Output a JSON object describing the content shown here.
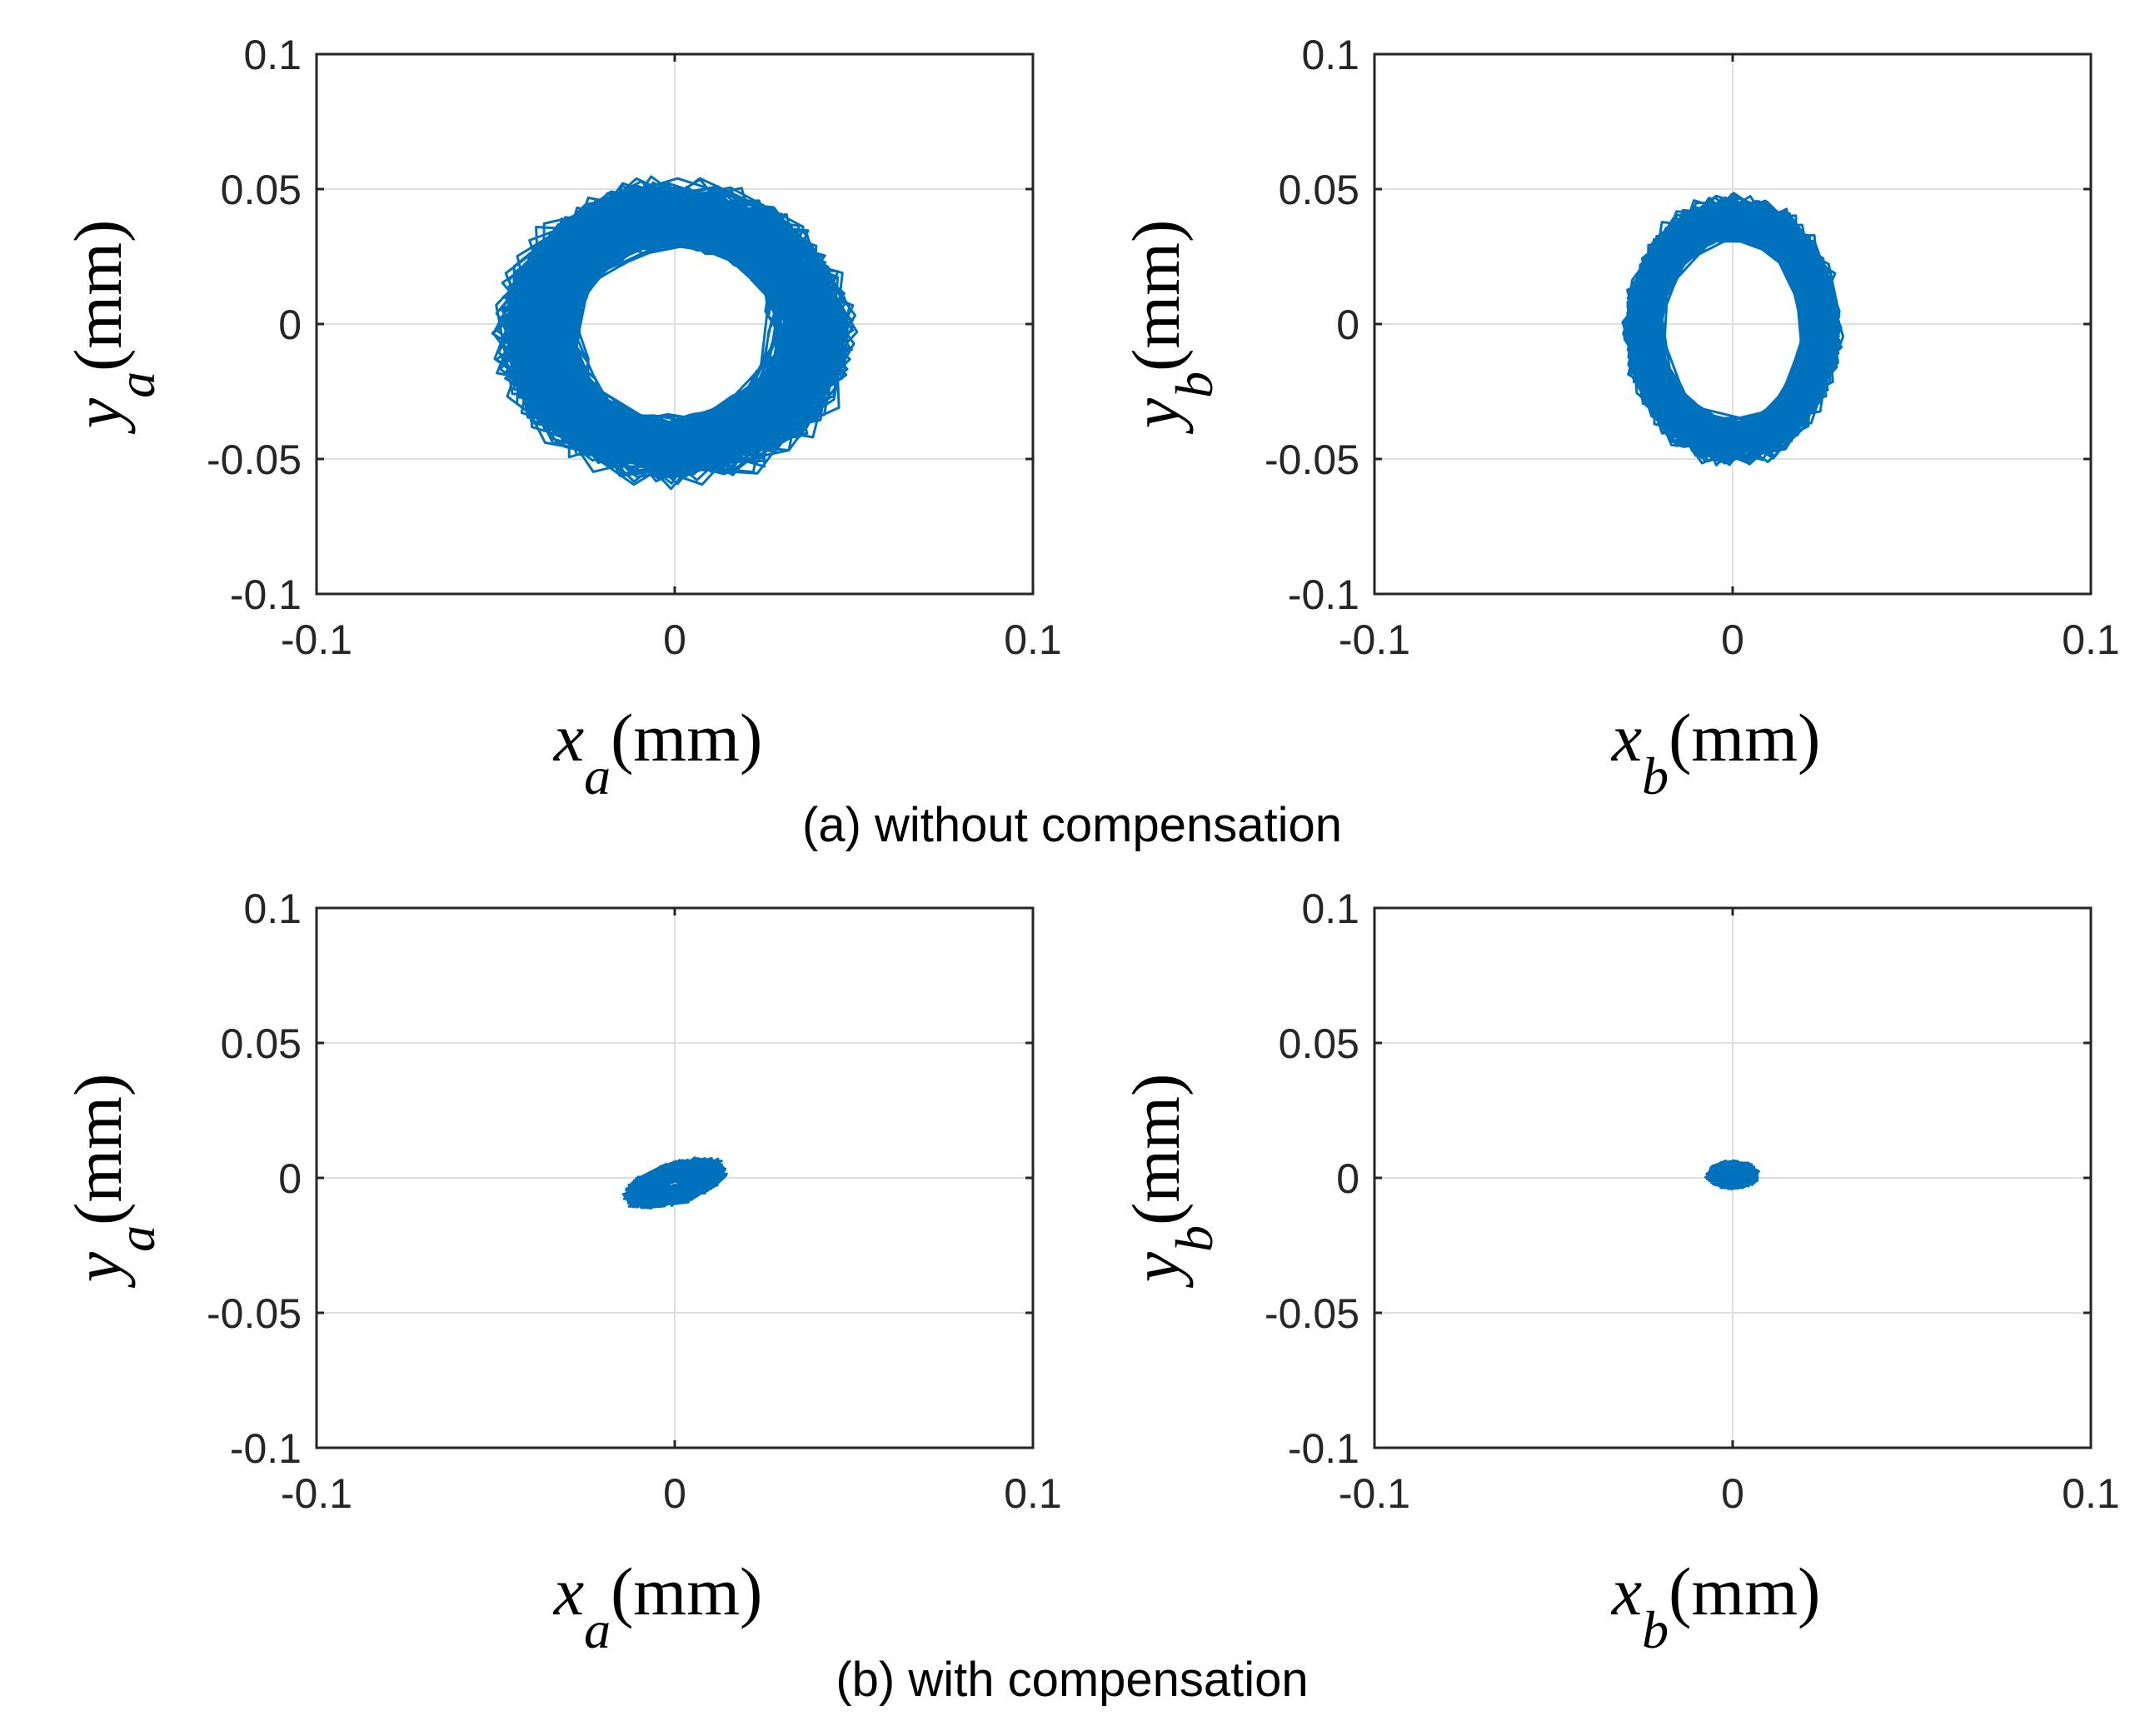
{
  "colors": {
    "series": "#0072BD",
    "axis": "#262626",
    "grid": "#dfdfdf"
  },
  "captions": [
    "(a) without compensation",
    "(b) with compensation"
  ],
  "chart_data": [
    {
      "type": "line",
      "panel": "top-left",
      "series": [
        {
          "name": "orbit",
          "shape": "noisy-ellipse",
          "center": [
            0.0,
            -0.003
          ],
          "radius_x": 0.039,
          "radius_y": 0.044,
          "band_width": 0.012,
          "tilt_deg": 0
        }
      ],
      "x_label": {
        "var": "x",
        "sub": "a",
        "unit": "(mm)"
      },
      "y_label": {
        "var": "y",
        "sub": "a",
        "unit": "(mm)"
      },
      "xlim": [
        -0.1,
        0.1
      ],
      "ylim": [
        -0.1,
        0.1
      ],
      "xticks": [
        "-0.1",
        "0",
        "0.1"
      ],
      "yticks": [
        "0.1",
        "0.05",
        "0",
        "-0.05",
        "-0.1"
      ],
      "grid": true
    },
    {
      "type": "line",
      "panel": "top-right",
      "series": [
        {
          "name": "orbit",
          "shape": "noisy-ellipse",
          "center": [
            0.0,
            -0.002
          ],
          "radius_x": 0.025,
          "radius_y": 0.042,
          "band_width": 0.008,
          "tilt_deg": 0
        }
      ],
      "x_label": {
        "var": "x",
        "sub": "b",
        "unit": "(mm)"
      },
      "y_label": {
        "var": "y",
        "sub": "b",
        "unit": "(mm)"
      },
      "xlim": [
        -0.1,
        0.1
      ],
      "ylim": [
        -0.1,
        0.1
      ],
      "xticks": [
        "-0.1",
        "0",
        "0.1"
      ],
      "yticks": [
        "0.1",
        "0.05",
        "0",
        "-0.05",
        "-0.1"
      ],
      "grid": true
    },
    {
      "type": "line",
      "panel": "bottom-left",
      "series": [
        {
          "name": "orbit",
          "shape": "noisy-blob",
          "center": [
            0.0,
            -0.002
          ],
          "radius_x": 0.015,
          "radius_y": 0.007,
          "band_width": 0.005,
          "tilt_deg": 25
        }
      ],
      "x_label": {
        "var": "x",
        "sub": "a",
        "unit": "(mm)"
      },
      "y_label": {
        "var": "y",
        "sub": "a",
        "unit": "(mm)"
      },
      "xlim": [
        -0.1,
        0.1
      ],
      "ylim": [
        -0.1,
        0.1
      ],
      "xticks": [
        "-0.1",
        "0",
        "0.1"
      ],
      "yticks": [
        "0.1",
        "0.05",
        "0",
        "-0.05",
        "-0.1"
      ],
      "grid": true
    },
    {
      "type": "line",
      "panel": "bottom-right",
      "series": [
        {
          "name": "orbit",
          "shape": "noisy-blob",
          "center": [
            0.0,
            0.001
          ],
          "radius_x": 0.007,
          "radius_y": 0.005,
          "band_width": 0.003,
          "tilt_deg": 0
        }
      ],
      "x_label": {
        "var": "x",
        "sub": "b",
        "unit": "(mm)"
      },
      "y_label": {
        "var": "y",
        "sub": "b",
        "unit": "(mm)"
      },
      "xlim": [
        -0.1,
        0.1
      ],
      "ylim": [
        -0.1,
        0.1
      ],
      "xticks": [
        "-0.1",
        "0",
        "0.1"
      ],
      "yticks": [
        "0.1",
        "0.05",
        "0",
        "-0.05",
        "-0.1"
      ],
      "grid": true
    }
  ]
}
